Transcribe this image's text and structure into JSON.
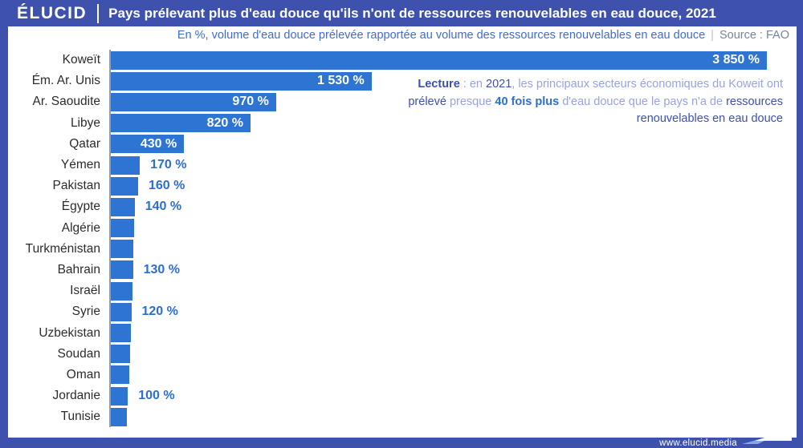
{
  "header": {
    "brand": "ÉLUCID",
    "title": "Pays prélevant plus d'eau douce qu'ils n'ont de ressources renouvelables en eau douce, 2021"
  },
  "subtitle": {
    "text": "En %, volume d'eau douce prélevée rapportée au volume des ressources renouvelables en eau douce",
    "divider": "|",
    "source": "Source : FAO"
  },
  "annotation": {
    "parts": [
      {
        "text": "Lecture",
        "style": "bold_dark"
      },
      {
        "text": " : en ",
        "style": "light"
      },
      {
        "text": "2021",
        "style": "dark"
      },
      {
        "text": ", les principaux secteurs économiques du Koweit ont ",
        "style": "light"
      },
      {
        "text": "prélevé",
        "style": "dark"
      },
      {
        "text": " presque ",
        "style": "light"
      },
      {
        "text": "40 fois plus",
        "style": "bright"
      },
      {
        "text": " d'eau douce que le pays n'a de ",
        "style": "light"
      },
      {
        "text": "ressources renouvelables en eau douce",
        "style": "dark"
      }
    ]
  },
  "footer": {
    "url": "www.elucid.media"
  },
  "colors": {
    "band_blue": "#3e52ad",
    "bar_blue": "#2e74d2",
    "value_text_blue": "#2b6fd0",
    "subtitle_blue": "#3f6dcf",
    "source_gray": "#76849b",
    "annotation_light": "#99a3de",
    "annotation_dark": "#3c50ae",
    "axis_gray": "#9b9b9b"
  },
  "chart_data": {
    "type": "bar",
    "orientation": "horizontal",
    "unit": "%",
    "title": "Pays prélevant plus d'eau douce qu'ils n'ont de ressources renouvelables en eau douce, 2021",
    "xlabel": "",
    "ylabel": "",
    "value_axis_max": 3850,
    "grid": false,
    "legend": false,
    "note": "values without a printed label are estimated from bar length",
    "categories": [
      "Koweït",
      "Ém. Ar. Unis",
      "Ar. Saoudite",
      "Libye",
      "Qatar",
      "Yémen",
      "Pakistan",
      "Égypte",
      "Algérie",
      "Turkménistan",
      "Bahrain",
      "Israël",
      "Syrie",
      "Uzbekistan",
      "Soudan",
      "Oman",
      "Jordanie",
      "Tunisie"
    ],
    "values": [
      3850,
      1530,
      970,
      820,
      430,
      170,
      160,
      140,
      138,
      134,
      130,
      125,
      120,
      116,
      113,
      110,
      100,
      95
    ],
    "bars": [
      {
        "country": "Koweït",
        "value": 3850,
        "label": "3 850 %",
        "label_position": "inside"
      },
      {
        "country": "Ém. Ar. Unis",
        "value": 1530,
        "label": "1 530 %",
        "label_position": "inside"
      },
      {
        "country": "Ar. Saoudite",
        "value": 970,
        "label": "970 %",
        "label_position": "inside"
      },
      {
        "country": "Libye",
        "value": 820,
        "label": "820 %",
        "label_position": "inside"
      },
      {
        "country": "Qatar",
        "value": 430,
        "label": "430 %",
        "label_position": "inside"
      },
      {
        "country": "Yémen",
        "value": 170,
        "label": "170 %",
        "label_position": "outside"
      },
      {
        "country": "Pakistan",
        "value": 160,
        "label": "160 %",
        "label_position": "outside"
      },
      {
        "country": "Égypte",
        "value": 140,
        "label": "140 %",
        "label_position": "outside"
      },
      {
        "country": "Algérie",
        "value": 138,
        "label": "",
        "label_position": "none"
      },
      {
        "country": "Turkménistan",
        "value": 134,
        "label": "",
        "label_position": "none"
      },
      {
        "country": "Bahrain",
        "value": 130,
        "label": "130 %",
        "label_position": "outside"
      },
      {
        "country": "Israël",
        "value": 125,
        "label": "",
        "label_position": "none"
      },
      {
        "country": "Syrie",
        "value": 120,
        "label": "120 %",
        "label_position": "outside"
      },
      {
        "country": "Uzbekistan",
        "value": 116,
        "label": "",
        "label_position": "none"
      },
      {
        "country": "Soudan",
        "value": 113,
        "label": "",
        "label_position": "none"
      },
      {
        "country": "Oman",
        "value": 110,
        "label": "",
        "label_position": "none"
      },
      {
        "country": "Jordanie",
        "value": 100,
        "label": "100 %",
        "label_position": "outside"
      },
      {
        "country": "Tunisie",
        "value": 95,
        "label": "",
        "label_position": "none"
      }
    ]
  }
}
